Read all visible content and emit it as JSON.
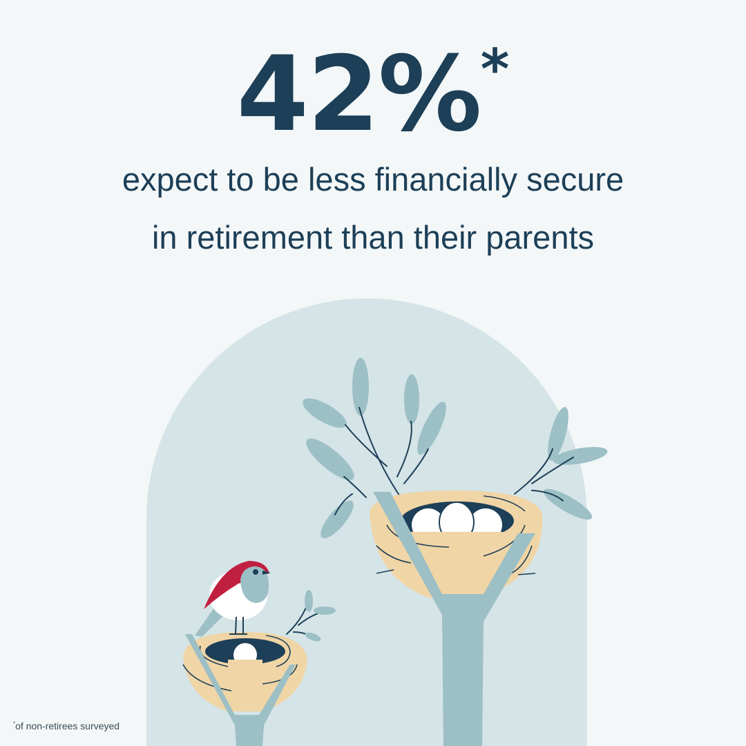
{
  "headline": {
    "value": "42%",
    "marker": "*"
  },
  "subtitle": {
    "line1": "expect to be less financially secure",
    "line2": "in retirement than their parents"
  },
  "footnote": {
    "marker": "*",
    "text": "of non-retirees surveyed"
  },
  "colors": {
    "background": "#f3f7f8",
    "arch": "#d5e4e7",
    "navy": "#1d3f57",
    "tree": "#9dbfc6",
    "nest": "#f0d5a6",
    "bird_red": "#c0203f"
  }
}
